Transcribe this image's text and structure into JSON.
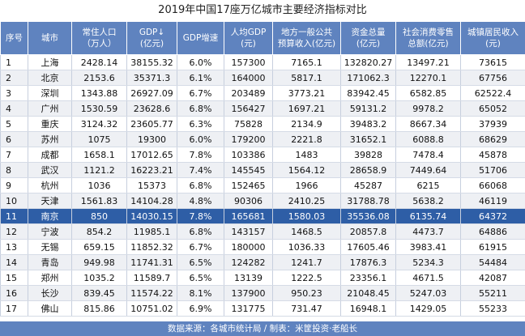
{
  "title": "2019年中国17座万亿城市主要经济指标对比",
  "headers": [
    [
      "序号"
    ],
    [
      "城市"
    ],
    [
      "常住人口",
      "（万人）"
    ],
    [
      "GDP↓",
      "(亿元)"
    ],
    [
      "GDP增速"
    ],
    [
      "人均GDP",
      "(元)"
    ],
    [
      "地方一般公共",
      "预算收入(亿元)"
    ],
    [
      "资金总量",
      "(亿元)"
    ],
    [
      "社会消费零售",
      "总额(亿元)"
    ],
    [
      "城镇居民收入",
      "(元)"
    ]
  ],
  "rows": [
    [
      "1",
      "上海",
      "2428.14",
      "38155.32",
      "6.0%",
      "157300",
      "7165.1",
      "132820.27",
      "13497.21",
      "73615"
    ],
    [
      "2",
      "北京",
      "2153.6",
      "35371.3",
      "6.1%",
      "164000",
      "5817.1",
      "171062.3",
      "12270.1",
      "67756"
    ],
    [
      "3",
      "深圳",
      "1343.88",
      "26927.09",
      "6.7%",
      "203489",
      "3773.21",
      "83942.45",
      "6582.85",
      "62522.4"
    ],
    [
      "4",
      "广州",
      "1530.59",
      "23628.6",
      "6.8%",
      "156427",
      "1697.21",
      "59131.2",
      "9978.2",
      "65052"
    ],
    [
      "5",
      "重庆",
      "3124.32",
      "23605.77",
      "6.3%",
      "75828",
      "2134.9",
      "39483.2",
      "8667.34",
      "37939"
    ],
    [
      "6",
      "苏州",
      "1075",
      "19300",
      "6.0%",
      "179200",
      "2221.8",
      "31652.1",
      "6088.8",
      "68629"
    ],
    [
      "7",
      "成都",
      "1658.1",
      "17012.65",
      "7.8%",
      "103386",
      "1483",
      "39828",
      "7478.4",
      "45878"
    ],
    [
      "8",
      "武汉",
      "1121.2",
      "16223.21",
      "7.4%",
      "145545",
      "1564.12",
      "28658.9",
      "7449.64",
      "51706"
    ],
    [
      "9",
      "杭州",
      "1036",
      "15373",
      "6.8%",
      "152465",
      "1966",
      "45287",
      "6215",
      "66068"
    ],
    [
      "10",
      "天津",
      "1561.83",
      "14104.28",
      "4.8%",
      "90306",
      "2410.25",
      "31788.78",
      "5638.2",
      "46119"
    ],
    [
      "11",
      "南京",
      "850",
      "14030.15",
      "7.8%",
      "165681",
      "1580.03",
      "35536.08",
      "6135.74",
      "64372"
    ],
    [
      "12",
      "宁波",
      "854.2",
      "11985.1",
      "6.8%",
      "143157",
      "1468.5",
      "20857.8",
      "4473.7",
      "64886"
    ],
    [
      "13",
      "无锡",
      "659.15",
      "11852.32",
      "6.7%",
      "180000",
      "1036.33",
      "17605.46",
      "3983.41",
      "61915"
    ],
    [
      "14",
      "青岛",
      "949.98",
      "11741.31",
      "6.5%",
      "124282",
      "1241.7",
      "17876.3",
      "5234.3",
      "54484"
    ],
    [
      "15",
      "郑州",
      "1035.2",
      "11589.7",
      "6.5%",
      "13139",
      "1222.5",
      "23356.1",
      "4671.5",
      "42087"
    ],
    [
      "16",
      "长沙",
      "839.45",
      "11574.22",
      "8.1%",
      "137900",
      "950.23",
      "21048.45",
      "5247.03",
      "55211"
    ],
    [
      "17",
      "佛山",
      "815.86",
      "10751.02",
      "6.9%",
      "131775",
      "731.47",
      "16948.1",
      "1429.05",
      "55233"
    ]
  ],
  "highlight_row": 10,
  "footer": "数据来源：各城市统计局 / 制表：米筐投资·老船长",
  "colors": {
    "header_bg": "#5f83bf",
    "highlight_bg": "#2e5ea6",
    "stripe_bg": "#eef0f4"
  }
}
